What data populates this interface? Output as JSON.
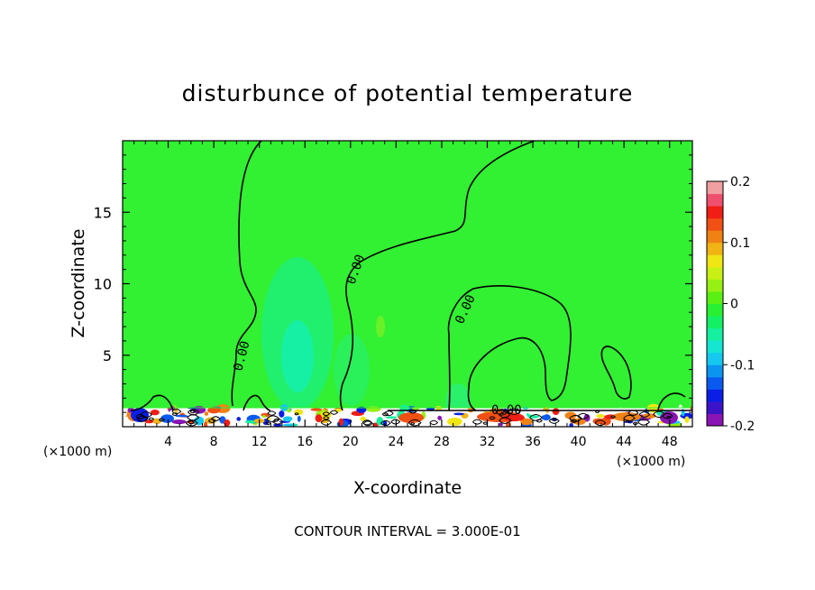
{
  "chart_data": {
    "type": "heatmap",
    "title": "disturbunce of potential temperature",
    "xlabel": "X-coordinate",
    "ylabel": "Z-coordinate",
    "x_unit_left": "(×1000 m)",
    "x_unit_right": "(×1000 m)",
    "x_ticks": [
      "4",
      "8",
      "12",
      "16",
      "20",
      "24",
      "28",
      "32",
      "36",
      "40",
      "44",
      "48"
    ],
    "x_tick_values": [
      4,
      8,
      12,
      16,
      20,
      24,
      28,
      32,
      36,
      40,
      44,
      48
    ],
    "y_ticks": [
      "5",
      "10",
      "15"
    ],
    "y_tick_values": [
      5,
      10,
      15
    ],
    "xlim": [
      0,
      50
    ],
    "ylim": [
      0,
      20
    ],
    "colorbar": {
      "min": -0.2,
      "max": 0.2,
      "tick_labels": [
        "0.2",
        "0.1",
        "0",
        "-0.1",
        "-0.2"
      ],
      "tick_values": [
        0.2,
        0.1,
        0,
        -0.1,
        -0.2
      ],
      "colors": [
        "#8a14b4",
        "#3c14c8",
        "#0a1ee6",
        "#0a5af0",
        "#0a96f0",
        "#14c8f0",
        "#14e6d2",
        "#14f0a0",
        "#14f064",
        "#28f032",
        "#5af014",
        "#96f014",
        "#c8f014",
        "#f0e614",
        "#f0b414",
        "#f08214",
        "#f05014",
        "#f01e14",
        "#f0506e",
        "#f0a0a0"
      ]
    },
    "contour_labels": [
      "0.00",
      "0.00",
      "0.00",
      "0.00"
    ],
    "contour_interval_label": "CONTOUR INTERVAL = 3.000E-01",
    "background_color": "#32f032"
  }
}
